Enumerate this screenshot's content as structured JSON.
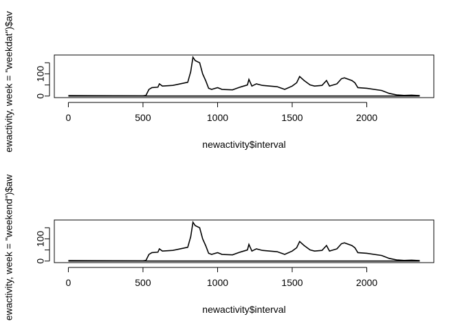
{
  "chart_data": [
    {
      "type": "line",
      "xlabel": "newactivity$interval",
      "ylabel": "ewactivity, week = \"weekdat\")$av",
      "xlim": [
        -94.2,
        2449.2
      ],
      "xticks": [
        0,
        500,
        1000,
        1500,
        2000
      ],
      "ylim": [
        -7.1,
        185
      ],
      "yticks": [
        0,
        100
      ],
      "yminorticks": [
        50,
        150
      ],
      "series": [
        {
          "color": "#000000",
          "x": [
            0,
            500,
            520,
            540,
            560,
            600,
            610,
            630,
            700,
            750,
            800,
            820,
            835,
            850,
            880,
            900,
            920,
            940,
            960,
            1000,
            1030,
            1100,
            1150,
            1200,
            1210,
            1230,
            1260,
            1300,
            1350,
            1400,
            1450,
            1500,
            1530,
            1550,
            1580,
            1620,
            1650,
            1700,
            1730,
            1750,
            1800,
            1830,
            1850,
            1900,
            1920,
            1940,
            2000,
            2100,
            2150,
            2200,
            2250,
            2300,
            2355
          ],
          "values": [
            2,
            1,
            3,
            30,
            38,
            40,
            55,
            45,
            48,
            55,
            62,
            110,
            175,
            160,
            150,
            100,
            70,
            35,
            30,
            38,
            30,
            28,
            40,
            50,
            75,
            45,
            55,
            48,
            45,
            42,
            30,
            45,
            60,
            88,
            70,
            50,
            45,
            48,
            70,
            45,
            55,
            78,
            82,
            70,
            60,
            38,
            35,
            25,
            12,
            5,
            3,
            4,
            2
          ]
        },
        {
          "color": "#000000",
          "x": [
            0,
            2355
          ],
          "values": [
            0,
            0
          ]
        }
      ]
    },
    {
      "type": "line",
      "xlabel": "newactivity$interval",
      "ylabel": "ewactivity, week = \"weekend\")$aw",
      "xlim": [
        -94.2,
        2449.2
      ],
      "xticks": [
        0,
        500,
        1000,
        1500,
        2000
      ],
      "ylim": [
        -7.1,
        185
      ],
      "yticks": [
        0,
        100
      ],
      "yminorticks": [
        50,
        150
      ],
      "series": [
        {
          "color": "#000000",
          "x": [
            0,
            500,
            520,
            540,
            560,
            600,
            610,
            630,
            700,
            750,
            800,
            820,
            835,
            850,
            880,
            900,
            920,
            940,
            960,
            1000,
            1030,
            1100,
            1150,
            1200,
            1210,
            1230,
            1260,
            1300,
            1350,
            1400,
            1450,
            1500,
            1530,
            1550,
            1580,
            1620,
            1650,
            1700,
            1730,
            1750,
            1800,
            1830,
            1850,
            1900,
            1920,
            1940,
            2000,
            2100,
            2150,
            2200,
            2250,
            2300,
            2355
          ],
          "values": [
            2,
            1,
            3,
            30,
            38,
            40,
            55,
            45,
            48,
            55,
            62,
            110,
            175,
            160,
            150,
            100,
            70,
            35,
            30,
            38,
            30,
            28,
            40,
            50,
            75,
            45,
            55,
            48,
            45,
            42,
            30,
            45,
            60,
            88,
            70,
            50,
            45,
            48,
            70,
            45,
            55,
            78,
            82,
            70,
            60,
            38,
            35,
            25,
            12,
            5,
            3,
            4,
            2
          ]
        },
        {
          "color": "#000000",
          "x": [
            0,
            2355
          ],
          "values": [
            0,
            0
          ]
        }
      ]
    }
  ]
}
